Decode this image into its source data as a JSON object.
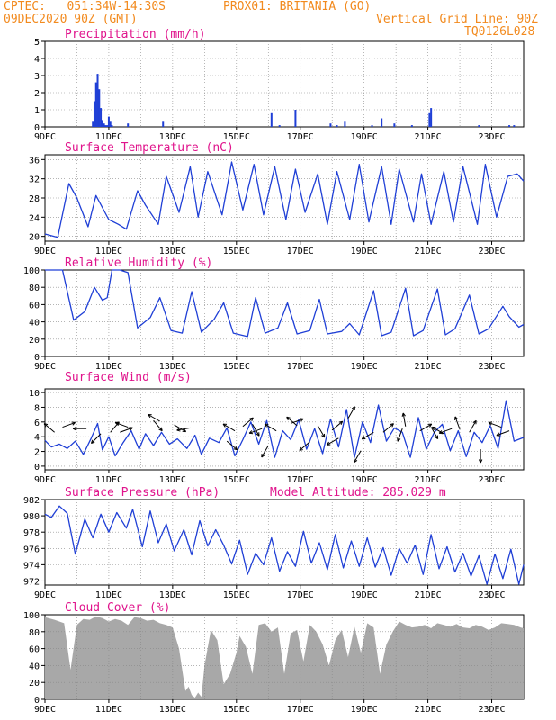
{
  "header": {
    "line1_left": "CPTEC:   051:34W-14:30S",
    "line1_right": "PROX01: BRITANIA (GO)",
    "line2_left": "09DEC2020 90Z (GMT)",
    "line2_right": "Vertical Grid Line: 90Z",
    "line3_right": "TQ0126L028"
  },
  "colors": {
    "header": "#f28a1e",
    "title": "#e0148c",
    "series": "#1f3fd6",
    "cloud": "#a8a8a8",
    "grid": "#888888"
  },
  "x_tick_labels": [
    "9DEC",
    "11DEC",
    "13DEC",
    "15DEC",
    "17DEC",
    "19DEC",
    "21DEC",
    "23DEC"
  ],
  "chart_data": [
    {
      "type": "bar",
      "title": "Precipitation (mm/h)",
      "ylim": [
        0,
        5
      ],
      "yticks": [
        "0",
        "1",
        "2",
        "3",
        "4",
        "5"
      ],
      "x_days": [
        10.5,
        10.55,
        10.6,
        10.65,
        10.7,
        10.75,
        10.8,
        10.85,
        10.9,
        10.95,
        11.0,
        11.05,
        11.1,
        11.6,
        12.7,
        16.1,
        16.35,
        16.85,
        17.95,
        18.15,
        18.4,
        19.25,
        19.55,
        19.95,
        20.5,
        21.05,
        21.1,
        22.6,
        23.55,
        23.7
      ],
      "values": [
        0.3,
        1.5,
        2.6,
        3.1,
        2.2,
        1.1,
        0.4,
        0.2,
        0.1,
        0.1,
        0.6,
        0.3,
        0.1,
        0.2,
        0.3,
        0.8,
        0.1,
        1.0,
        0.2,
        0.1,
        0.3,
        0.1,
        0.5,
        0.2,
        0.1,
        0.8,
        1.1,
        0.1,
        0.1,
        0.1
      ]
    },
    {
      "type": "line",
      "title": "Surface Temperature (nC)",
      "ylim": [
        19,
        37
      ],
      "yticks": [
        "20",
        "24",
        "28",
        "32",
        "36"
      ],
      "x_days": [
        9.0,
        9.4,
        9.75,
        10.0,
        10.35,
        10.6,
        11.0,
        11.3,
        11.55,
        11.9,
        12.15,
        12.55,
        12.8,
        13.2,
        13.55,
        13.8,
        14.1,
        14.55,
        14.85,
        15.2,
        15.55,
        15.85,
        16.2,
        16.55,
        16.85,
        17.15,
        17.55,
        17.85,
        18.15,
        18.55,
        18.85,
        19.15,
        19.55,
        19.85,
        20.1,
        20.55,
        20.8,
        21.1,
        21.5,
        21.8,
        22.1,
        22.55,
        22.8,
        23.15,
        23.5,
        23.8,
        24.0
      ],
      "values": [
        20.5,
        19.8,
        31.0,
        28.0,
        22.0,
        28.5,
        23.5,
        22.5,
        21.5,
        29.5,
        26.5,
        22.5,
        32.5,
        25.0,
        34.5,
        24.0,
        33.5,
        24.5,
        35.5,
        25.5,
        35.0,
        24.5,
        34.5,
        23.5,
        34.0,
        25.0,
        33.0,
        22.5,
        33.5,
        23.5,
        35.0,
        23.0,
        34.5,
        22.5,
        34.0,
        23.0,
        33.0,
        22.5,
        33.5,
        23.0,
        34.5,
        22.5,
        35.0,
        24.0,
        32.5,
        33.0,
        31.5
      ]
    },
    {
      "type": "line",
      "title": "Relative Humidity (%)",
      "ylim": [
        0,
        100
      ],
      "yticks": [
        "0",
        "20",
        "40",
        "60",
        "80",
        "100"
      ],
      "x_days": [
        9.0,
        9.55,
        9.9,
        10.25,
        10.55,
        10.8,
        10.95,
        11.1,
        11.35,
        11.6,
        11.9,
        12.3,
        12.6,
        12.95,
        13.3,
        13.6,
        13.9,
        14.3,
        14.6,
        14.9,
        15.35,
        15.6,
        15.9,
        16.3,
        16.6,
        16.9,
        17.3,
        17.6,
        17.85,
        18.3,
        18.55,
        18.85,
        19.3,
        19.55,
        19.85,
        20.3,
        20.55,
        20.85,
        21.3,
        21.55,
        21.85,
        22.3,
        22.6,
        22.9,
        23.35,
        23.55,
        23.85,
        24.0
      ],
      "values": [
        100,
        100,
        42,
        52,
        80,
        65,
        68,
        100,
        100,
        97,
        33,
        45,
        68,
        30,
        27,
        75,
        28,
        43,
        62,
        27,
        23,
        68,
        27,
        33,
        62,
        26,
        30,
        66,
        26,
        29,
        38,
        25,
        76,
        24,
        28,
        79,
        24,
        30,
        78,
        25,
        32,
        71,
        26,
        32,
        58,
        46,
        34,
        37
      ]
    },
    {
      "type": "line",
      "title": "Surface Wind (m/s)",
      "ylim": [
        -0.5,
        10.5
      ],
      "yticks": [
        "0",
        "2",
        "4",
        "6",
        "8",
        "10"
      ],
      "x_days": [
        9.0,
        9.2,
        9.45,
        9.7,
        9.95,
        10.2,
        10.45,
        10.65,
        10.8,
        11.0,
        11.2,
        11.45,
        11.7,
        11.95,
        12.15,
        12.4,
        12.65,
        12.9,
        13.15,
        13.45,
        13.7,
        13.9,
        14.15,
        14.45,
        14.7,
        14.95,
        15.2,
        15.45,
        15.7,
        15.95,
        16.2,
        16.45,
        16.7,
        16.95,
        17.2,
        17.45,
        17.7,
        17.95,
        18.2,
        18.45,
        18.7,
        18.95,
        19.2,
        19.45,
        19.7,
        19.95,
        20.2,
        20.45,
        20.7,
        20.95,
        21.2,
        21.45,
        21.7,
        21.95,
        22.2,
        22.45,
        22.7,
        22.95,
        23.2,
        23.45,
        23.7,
        24.0
      ],
      "values": [
        3.5,
        2.6,
        3.0,
        2.4,
        3.4,
        1.6,
        3.8,
        5.8,
        2.2,
        4.0,
        1.4,
        3.2,
        4.8,
        2.3,
        4.4,
        2.8,
        4.6,
        3.0,
        3.7,
        2.4,
        4.2,
        1.6,
        3.8,
        3.2,
        5.2,
        1.4,
        3.6,
        6.0,
        3.0,
        6.2,
        1.2,
        4.8,
        3.6,
        6.3,
        2.3,
        5.1,
        1.7,
        6.4,
        2.6,
        7.7,
        1.2,
        6.0,
        3.2,
        8.3,
        3.4,
        5.2,
        4.6,
        1.2,
        6.6,
        2.3,
        4.6,
        5.7,
        2.1,
        4.8,
        1.3,
        4.6,
        3.2,
        5.5,
        2.4,
        8.9,
        3.4,
        3.9
      ],
      "arrows": [
        [
          9.3,
          4.6,
          140
        ],
        [
          9.55,
          5.3,
          20
        ],
        [
          10.3,
          5.1,
          180
        ],
        [
          10.75,
          4.4,
          225
        ],
        [
          11.05,
          4.6,
          50
        ],
        [
          11.35,
          4.6,
          20
        ],
        [
          11.6,
          5.3,
          160
        ],
        [
          12.4,
          6.2,
          310
        ],
        [
          12.6,
          6.1,
          150
        ],
        [
          13.05,
          5.6,
          330
        ],
        [
          13.55,
          5.2,
          190
        ],
        [
          14.7,
          3.4,
          320
        ],
        [
          14.95,
          4.8,
          150
        ],
        [
          15.2,
          5.4,
          40
        ],
        [
          15.5,
          5.7,
          300
        ],
        [
          15.8,
          5.1,
          200
        ],
        [
          16.0,
          2.8,
          240
        ],
        [
          16.25,
          4.8,
          150
        ],
        [
          16.7,
          5.8,
          20
        ],
        [
          16.9,
          5.5,
          140
        ],
        [
          17.3,
          3.3,
          220
        ],
        [
          17.55,
          5.5,
          300
        ],
        [
          18.0,
          4.9,
          40
        ],
        [
          18.2,
          3.8,
          210
        ],
        [
          18.5,
          6.5,
          60
        ],
        [
          18.9,
          2.1,
          240
        ],
        [
          19.3,
          4.6,
          210
        ],
        [
          19.6,
          4.6,
          40
        ],
        [
          20.2,
          5.1,
          250
        ],
        [
          20.3,
          5.4,
          100
        ],
        [
          20.75,
          4.8,
          30
        ],
        [
          21.1,
          5.3,
          300
        ],
        [
          21.5,
          4.4,
          150
        ],
        [
          21.75,
          5.1,
          200
        ],
        [
          22.0,
          5.0,
          110
        ],
        [
          22.3,
          4.6,
          60
        ],
        [
          22.65,
          2.3,
          270
        ],
        [
          23.3,
          5.3,
          160
        ],
        [
          23.55,
          4.8,
          200
        ]
      ]
    },
    {
      "type": "line",
      "title": "Surface Pressure (hPa)",
      "annotation": "Model Altitude: 285.029 m",
      "ylim": [
        971.5,
        982
      ],
      "yticks": [
        "972",
        "974",
        "976",
        "978",
        "980",
        "982"
      ],
      "x_days": [
        9.0,
        9.2,
        9.45,
        9.7,
        9.95,
        10.25,
        10.5,
        10.75,
        11.0,
        11.25,
        11.55,
        11.75,
        12.05,
        12.3,
        12.55,
        12.8,
        13.05,
        13.35,
        13.6,
        13.85,
        14.1,
        14.35,
        14.6,
        14.85,
        15.1,
        15.35,
        15.6,
        15.85,
        16.1,
        16.35,
        16.6,
        16.85,
        17.1,
        17.35,
        17.6,
        17.85,
        18.1,
        18.35,
        18.6,
        18.85,
        19.1,
        19.35,
        19.6,
        19.85,
        20.1,
        20.35,
        20.6,
        20.85,
        21.1,
        21.35,
        21.6,
        21.85,
        22.1,
        22.35,
        22.6,
        22.85,
        23.1,
        23.35,
        23.6,
        23.85,
        24.0
      ],
      "values": [
        980.2,
        979.8,
        981.2,
        980.3,
        975.3,
        979.6,
        977.3,
        980.2,
        978.0,
        980.4,
        978.5,
        980.8,
        976.2,
        980.6,
        976.7,
        979.0,
        975.7,
        978.3,
        975.2,
        979.4,
        976.3,
        978.3,
        976.4,
        974.1,
        977.0,
        972.8,
        975.4,
        974.0,
        977.3,
        973.2,
        975.6,
        973.8,
        978.1,
        974.2,
        976.7,
        973.4,
        977.7,
        973.6,
        976.9,
        973.8,
        977.3,
        973.7,
        976.1,
        972.7,
        976.0,
        974.2,
        976.4,
        972.8,
        977.7,
        973.5,
        976.2,
        973.1,
        975.4,
        972.6,
        975.1,
        971.6,
        975.3,
        972.3,
        975.9,
        971.6,
        974.0
      ]
    },
    {
      "type": "area",
      "title": "Cloud Cover (%)",
      "ylim": [
        0,
        100
      ],
      "yticks": [
        "0",
        "20",
        "40",
        "60",
        "80",
        "100"
      ],
      "x_days": [
        9.0,
        9.3,
        9.6,
        9.8,
        10.0,
        10.2,
        10.4,
        10.6,
        10.8,
        11.0,
        11.2,
        11.4,
        11.6,
        11.8,
        12.0,
        12.2,
        12.4,
        12.6,
        12.8,
        13.0,
        13.2,
        13.3,
        13.4,
        13.5,
        13.6,
        13.7,
        13.8,
        13.9,
        14.0,
        14.2,
        14.4,
        14.6,
        14.8,
        15.0,
        15.1,
        15.3,
        15.5,
        15.7,
        15.9,
        16.1,
        16.3,
        16.5,
        16.7,
        16.9,
        17.1,
        17.3,
        17.5,
        17.7,
        17.9,
        18.1,
        18.3,
        18.5,
        18.7,
        18.9,
        19.1,
        19.3,
        19.5,
        19.7,
        19.9,
        20.1,
        20.3,
        20.5,
        20.7,
        20.9,
        21.1,
        21.3,
        21.5,
        21.7,
        21.9,
        22.1,
        22.3,
        22.5,
        22.7,
        22.9,
        23.1,
        23.3,
        23.5,
        23.7,
        23.9,
        24.0
      ],
      "values": [
        97,
        94,
        90,
        35,
        88,
        95,
        94,
        98,
        96,
        92,
        95,
        93,
        88,
        97,
        96,
        93,
        94,
        90,
        88,
        85,
        60,
        35,
        10,
        15,
        5,
        2,
        8,
        3,
        40,
        82,
        70,
        18,
        30,
        55,
        75,
        62,
        30,
        88,
        90,
        80,
        85,
        30,
        78,
        82,
        45,
        88,
        80,
        65,
        40,
        70,
        82,
        50,
        86,
        55,
        90,
        85,
        30,
        65,
        80,
        92,
        88,
        85,
        86,
        88,
        84,
        90,
        88,
        86,
        89,
        85,
        84,
        88,
        86,
        82,
        85,
        90,
        89,
        88,
        85,
        84
      ]
    }
  ]
}
